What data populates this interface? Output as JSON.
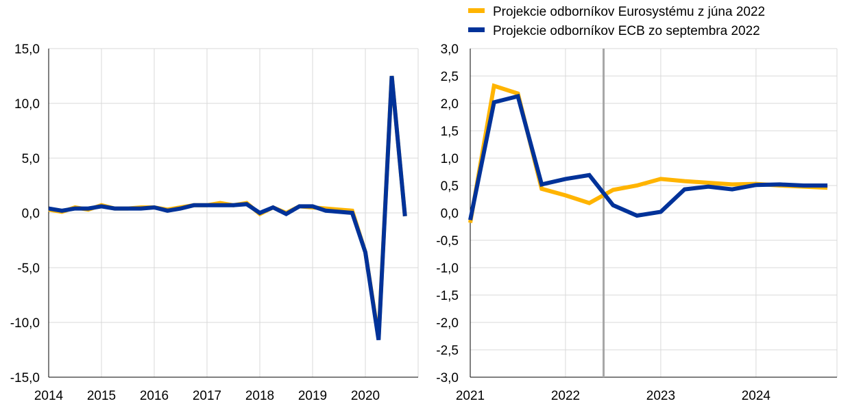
{
  "legend": {
    "items": [
      {
        "label": "Projekcie odborníkov Eurosystému z júna 2022",
        "color": "#ffb400"
      },
      {
        "label": "Projekcie odborníkov ECB zo septembra 2022",
        "color": "#003299"
      }
    ]
  },
  "chart_data": [
    {
      "type": "line",
      "title": "",
      "xlabel": "",
      "ylabel": "",
      "ylim": [
        -15,
        15
      ],
      "y_ticks": [
        15,
        10,
        5,
        0,
        -5,
        -10,
        -15
      ],
      "y_tick_labels": [
        "15,0",
        "10,0",
        "5,0",
        "0,0",
        "-5,0",
        "-10,0",
        "-15,0"
      ],
      "x_ticks": [
        2014,
        2015,
        2016,
        2017,
        2018,
        2019,
        2020
      ],
      "x_tick_labels": [
        "2014",
        "2015",
        "2016",
        "2017",
        "2018",
        "2019",
        "2020"
      ],
      "xlim": [
        2014,
        2021
      ],
      "grid": true,
      "series": [
        {
          "color": "#ffb400",
          "x": [
            2014.0,
            2014.25,
            2014.5,
            2014.75,
            2015.0,
            2015.25,
            2015.5,
            2015.75,
            2016.0,
            2016.25,
            2016.5,
            2016.75,
            2017.0,
            2017.25,
            2017.5,
            2017.75,
            2018.0,
            2018.25,
            2018.5,
            2018.75,
            2019.0,
            2019.25,
            2019.5,
            2019.75,
            2020.0,
            2020.25,
            2020.5,
            2020.75
          ],
          "values": [
            0.3,
            0.1,
            0.5,
            0.3,
            0.7,
            0.4,
            0.4,
            0.5,
            0.5,
            0.3,
            0.5,
            0.7,
            0.7,
            0.9,
            0.7,
            0.9,
            -0.1,
            0.5,
            0.0,
            0.6,
            0.5,
            0.4,
            0.3,
            0.2,
            -3.6,
            -11.4,
            12.5,
            -0.3
          ]
        },
        {
          "color": "#003299",
          "x": [
            2014.0,
            2014.25,
            2014.5,
            2014.75,
            2015.0,
            2015.25,
            2015.5,
            2015.75,
            2016.0,
            2016.25,
            2016.5,
            2016.75,
            2017.0,
            2017.25,
            2017.5,
            2017.75,
            2018.0,
            2018.25,
            2018.5,
            2018.75,
            2019.0,
            2019.25,
            2019.5,
            2019.75,
            2020.0,
            2020.25,
            2020.5,
            2020.75
          ],
          "values": [
            0.4,
            0.2,
            0.4,
            0.4,
            0.6,
            0.4,
            0.4,
            0.4,
            0.5,
            0.2,
            0.4,
            0.7,
            0.7,
            0.7,
            0.7,
            0.8,
            0.0,
            0.5,
            -0.1,
            0.6,
            0.6,
            0.2,
            0.1,
            0.0,
            -3.6,
            -11.6,
            12.5,
            -0.3
          ]
        }
      ]
    },
    {
      "type": "line",
      "title": "",
      "xlabel": "",
      "ylabel": "",
      "ylim": [
        -3,
        3
      ],
      "y_ticks": [
        3,
        2.5,
        2,
        1.5,
        1,
        0.5,
        0,
        -0.5,
        -1,
        -1.5,
        -2,
        -2.5,
        -3
      ],
      "y_tick_labels": [
        "3,0",
        "2,5",
        "2,0",
        "1,5",
        "1,0",
        "0,5",
        "0,0",
        "-0,5",
        "-1,0",
        "-1,5",
        "-2,0",
        "-2,5",
        "-3,0"
      ],
      "x_ticks": [
        2021,
        2022,
        2023,
        2024
      ],
      "x_tick_labels": [
        "2021",
        "2022",
        "2023",
        "2024"
      ],
      "xlim": [
        2021,
        2024.85
      ],
      "grid": true,
      "vertical_marker_x": 2022.4,
      "series": [
        {
          "color": "#ffb400",
          "x": [
            2021.0,
            2021.25,
            2021.5,
            2021.75,
            2022.0,
            2022.25,
            2022.5,
            2022.75,
            2023.0,
            2023.25,
            2023.5,
            2023.75,
            2024.0,
            2024.25,
            2024.5,
            2024.75
          ],
          "values": [
            -0.18,
            2.32,
            2.18,
            0.44,
            0.32,
            0.18,
            0.42,
            0.5,
            0.62,
            0.58,
            0.55,
            0.52,
            0.53,
            0.5,
            0.48,
            0.46
          ]
        },
        {
          "color": "#003299",
          "x": [
            2021.0,
            2021.25,
            2021.5,
            2021.75,
            2022.0,
            2022.25,
            2022.5,
            2022.75,
            2023.0,
            2023.25,
            2023.5,
            2023.75,
            2024.0,
            2024.25,
            2024.5,
            2024.75
          ],
          "values": [
            -0.13,
            2.02,
            2.13,
            0.52,
            0.62,
            0.69,
            0.14,
            -0.05,
            0.02,
            0.43,
            0.48,
            0.43,
            0.51,
            0.52,
            0.5,
            0.5
          ]
        }
      ]
    }
  ]
}
